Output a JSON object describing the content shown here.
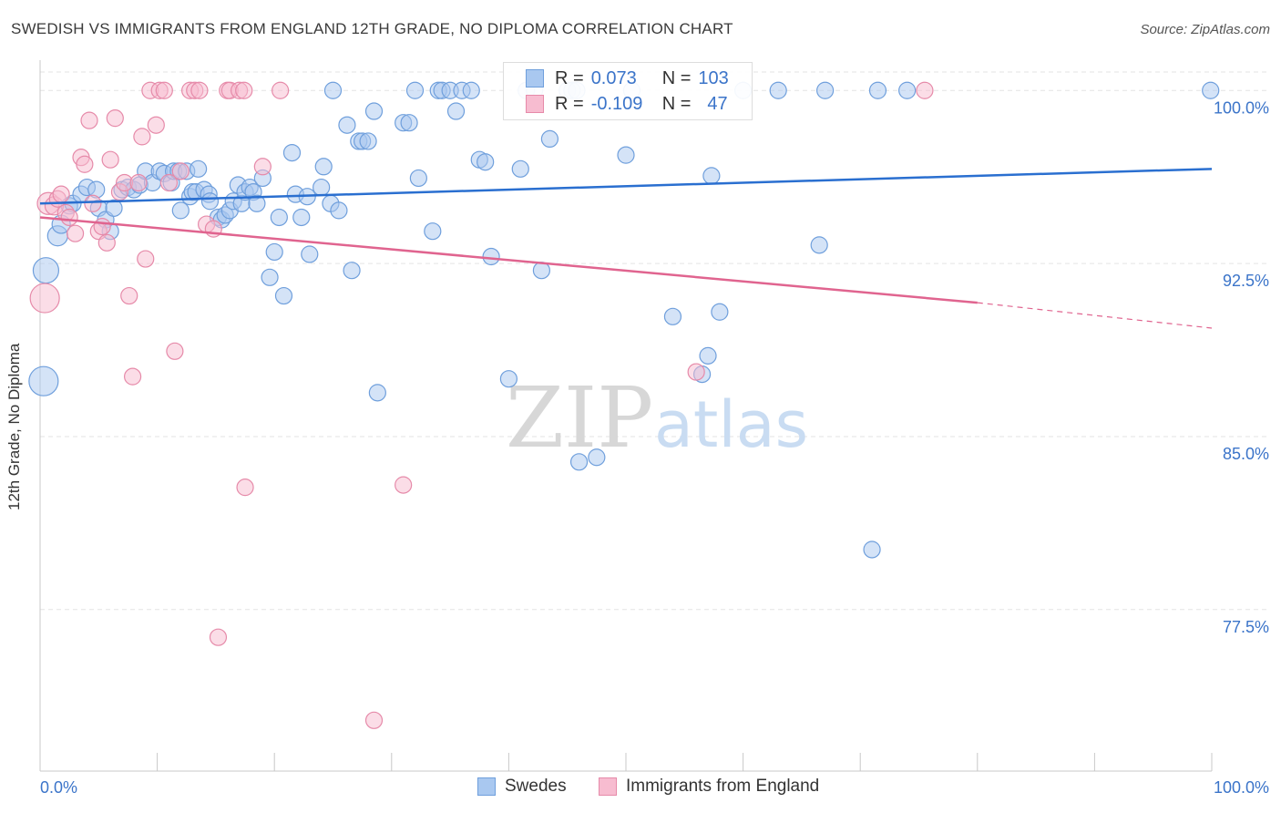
{
  "header": {
    "title": "SWEDISH VS IMMIGRANTS FROM ENGLAND 12TH GRADE, NO DIPLOMA CORRELATION CHART",
    "source": "Source: ZipAtlas.com"
  },
  "watermark": {
    "zip": "ZIP",
    "atlas": "atlas"
  },
  "legend": {
    "r_label": "R =",
    "n_label": "N =",
    "rows": [
      {
        "r": "0.073",
        "n": "103",
        "color": "#a9c8f0",
        "border": "#6f9fdc"
      },
      {
        "r": "-0.109",
        "n": "47",
        "color": "#f7bcd0",
        "border": "#e68aa9"
      }
    ]
  },
  "colors": {
    "swedes_fill": "#a9c8f0",
    "swedes_stroke": "#6f9fdc",
    "swedes_line": "#2a6fd0",
    "england_fill": "#f7bcd0",
    "england_stroke": "#e68aa9",
    "england_line": "#e0648f",
    "axis_text": "#3b74c9",
    "grid": "#e3e3e3"
  },
  "chart_data": {
    "type": "scatter",
    "title": "SWEDISH VS IMMIGRANTS FROM ENGLAND 12TH GRADE, NO DIPLOMA CORRELATION CHART",
    "xlabel": "",
    "ylabel": "12th Grade, No Diploma",
    "xlim": [
      0,
      100
    ],
    "ylim": [
      70.5,
      100.8
    ],
    "x_tick_labels": [
      "0.0%",
      "100.0%"
    ],
    "y_ticks": [
      77.5,
      85.0,
      92.5,
      100.0
    ],
    "y_tick_labels": [
      "77.5%",
      "85.0%",
      "92.5%",
      "100.0%"
    ],
    "grid": true,
    "legend_position": "bottom",
    "series": [
      {
        "name": "Swedes",
        "r": 0.073,
        "n": 103,
        "trend": {
          "x0": 0,
          "y0": 95.1,
          "x1": 100,
          "y1": 96.6
        },
        "points": [
          [
            0.3,
            87.4,
            16
          ],
          [
            0.5,
            92.2,
            14
          ],
          [
            1.5,
            93.7,
            11
          ],
          [
            1.8,
            94.2,
            10
          ],
          [
            2.5,
            95.0,
            9
          ],
          [
            2.8,
            95.1,
            9
          ],
          [
            3.5,
            95.5,
            9
          ],
          [
            4.0,
            95.8,
            9
          ],
          [
            4.8,
            95.7,
            9
          ],
          [
            5.0,
            94.9,
            9
          ],
          [
            5.6,
            94.4,
            9
          ],
          [
            6.0,
            93.9,
            9
          ],
          [
            6.3,
            94.9,
            9
          ],
          [
            7.0,
            95.7,
            9
          ],
          [
            7.5,
            95.8,
            9
          ],
          [
            8.0,
            95.7,
            9
          ],
          [
            8.5,
            95.9,
            9
          ],
          [
            9.0,
            96.5,
            9
          ],
          [
            9.6,
            96.0,
            9
          ],
          [
            10.2,
            96.5,
            9
          ],
          [
            10.6,
            96.4,
            9
          ],
          [
            11.2,
            96.0,
            9
          ],
          [
            11.4,
            96.5,
            9
          ],
          [
            11.8,
            96.5,
            9
          ],
          [
            12.0,
            94.8,
            9
          ],
          [
            12.5,
            96.5,
            9
          ],
          [
            12.8,
            95.4,
            9
          ],
          [
            13.0,
            95.6,
            9
          ],
          [
            13.3,
            95.6,
            9
          ],
          [
            13.5,
            96.6,
            9
          ],
          [
            14.0,
            95.7,
            9
          ],
          [
            14.4,
            95.5,
            9
          ],
          [
            14.5,
            95.2,
            9
          ],
          [
            15.2,
            94.5,
            9
          ],
          [
            15.5,
            94.4,
            9
          ],
          [
            15.8,
            94.6,
            9
          ],
          [
            16.2,
            94.8,
            9
          ],
          [
            16.5,
            95.2,
            9
          ],
          [
            16.9,
            95.9,
            9
          ],
          [
            17.2,
            95.1,
            9
          ],
          [
            17.5,
            95.6,
            9
          ],
          [
            17.9,
            95.8,
            9
          ],
          [
            18.2,
            95.6,
            9
          ],
          [
            18.5,
            95.1,
            9
          ],
          [
            19.0,
            96.2,
            9
          ],
          [
            19.6,
            91.9,
            9
          ],
          [
            20.0,
            93.0,
            9
          ],
          [
            20.4,
            94.5,
            9
          ],
          [
            20.8,
            91.1,
            9
          ],
          [
            21.5,
            97.3,
            9
          ],
          [
            21.8,
            95.5,
            9
          ],
          [
            22.3,
            94.5,
            9
          ],
          [
            22.8,
            95.4,
            9
          ],
          [
            23.0,
            92.9,
            9
          ],
          [
            24.0,
            95.8,
            9
          ],
          [
            24.2,
            96.7,
            9
          ],
          [
            24.8,
            95.1,
            9
          ],
          [
            25.0,
            100.0,
            9
          ],
          [
            25.5,
            94.8,
            9
          ],
          [
            26.2,
            98.5,
            9
          ],
          [
            26.6,
            92.2,
            9
          ],
          [
            27.2,
            97.8,
            9
          ],
          [
            27.5,
            97.8,
            9
          ],
          [
            28.0,
            97.8,
            9
          ],
          [
            28.5,
            99.1,
            9
          ],
          [
            28.8,
            86.9,
            9
          ],
          [
            31.0,
            98.6,
            9
          ],
          [
            31.5,
            98.6,
            9
          ],
          [
            32.0,
            100.0,
            9
          ],
          [
            32.3,
            96.2,
            9
          ],
          [
            33.5,
            93.9,
            9
          ],
          [
            34.0,
            100.0,
            9
          ],
          [
            34.3,
            100.0,
            9
          ],
          [
            35.0,
            100.0,
            9
          ],
          [
            35.5,
            99.1,
            9
          ],
          [
            36.0,
            100.0,
            9
          ],
          [
            36.8,
            100.0,
            9
          ],
          [
            37.5,
            97.0,
            9
          ],
          [
            38.0,
            96.9,
            9
          ],
          [
            38.5,
            92.8,
            9
          ],
          [
            40.0,
            87.5,
            9
          ],
          [
            41.0,
            96.6,
            9
          ],
          [
            41.5,
            100.0,
            9
          ],
          [
            42.2,
            100.0,
            9
          ],
          [
            42.8,
            92.2,
            9
          ],
          [
            43.5,
            97.9,
            9
          ],
          [
            45.0,
            100.0,
            9
          ],
          [
            45.4,
            100.0,
            9
          ],
          [
            45.8,
            100.0,
            9
          ],
          [
            46.0,
            83.9,
            9
          ],
          [
            47.5,
            84.1,
            9
          ],
          [
            50.0,
            97.2,
            9
          ],
          [
            50.5,
            100.0,
            9
          ],
          [
            54.0,
            90.2,
            9
          ],
          [
            56.5,
            87.7,
            9
          ],
          [
            57.0,
            88.5,
            9
          ],
          [
            57.3,
            96.3,
            9
          ],
          [
            58.0,
            90.4,
            9
          ],
          [
            60.0,
            100.0,
            9
          ],
          [
            63.0,
            100.0,
            9
          ],
          [
            66.5,
            93.3,
            9
          ],
          [
            67.0,
            100.0,
            9
          ],
          [
            71.0,
            80.1,
            9
          ],
          [
            71.5,
            100.0,
            9
          ],
          [
            74.0,
            100.0,
            9
          ],
          [
            99.9,
            100.0,
            9
          ]
        ]
      },
      {
        "name": "Immigrants from England",
        "r": -0.109,
        "n": 47,
        "trend": {
          "x0": 0,
          "y0": 94.5,
          "x1": 80,
          "y1": 90.8,
          "dash_to_x": 100,
          "dash_to_y": 89.7
        },
        "points": [
          [
            0.4,
            91.0,
            16
          ],
          [
            0.7,
            95.1,
            12
          ],
          [
            1.2,
            95.0,
            10
          ],
          [
            1.5,
            95.3,
            9
          ],
          [
            1.8,
            95.5,
            9
          ],
          [
            2.2,
            94.7,
            9
          ],
          [
            2.5,
            94.5,
            9
          ],
          [
            3.0,
            93.8,
            9
          ],
          [
            3.5,
            97.1,
            9
          ],
          [
            3.8,
            96.8,
            9
          ],
          [
            4.2,
            98.7,
            9
          ],
          [
            4.5,
            95.1,
            9
          ],
          [
            5.0,
            93.9,
            9
          ],
          [
            5.3,
            94.1,
            9
          ],
          [
            5.7,
            93.4,
            9
          ],
          [
            6.0,
            97.0,
            9
          ],
          [
            6.4,
            98.8,
            9
          ],
          [
            6.8,
            95.6,
            9
          ],
          [
            7.2,
            96.0,
            9
          ],
          [
            7.6,
            91.1,
            9
          ],
          [
            7.9,
            87.6,
            9
          ],
          [
            8.4,
            96.0,
            9
          ],
          [
            8.7,
            98.0,
            9
          ],
          [
            9.0,
            92.7,
            9
          ],
          [
            9.4,
            100.0,
            9
          ],
          [
            9.9,
            98.5,
            9
          ],
          [
            10.2,
            100.0,
            9
          ],
          [
            10.6,
            100.0,
            9
          ],
          [
            11.0,
            96.0,
            9
          ],
          [
            11.5,
            88.7,
            9
          ],
          [
            12.0,
            96.5,
            9
          ],
          [
            12.8,
            100.0,
            9
          ],
          [
            13.2,
            100.0,
            9
          ],
          [
            13.6,
            100.0,
            9
          ],
          [
            14.2,
            94.2,
            9
          ],
          [
            14.8,
            94.0,
            9
          ],
          [
            15.2,
            76.3,
            9
          ],
          [
            16.0,
            100.0,
            9
          ],
          [
            16.2,
            100.0,
            9
          ],
          [
            17.0,
            100.0,
            9
          ],
          [
            17.4,
            100.0,
            9
          ],
          [
            17.5,
            82.8,
            9
          ],
          [
            19.0,
            96.7,
            9
          ],
          [
            20.5,
            100.0,
            9
          ],
          [
            28.5,
            72.7,
            9
          ],
          [
            31.0,
            82.9,
            9
          ],
          [
            56.0,
            87.8,
            9
          ],
          [
            75.5,
            100.0,
            9
          ]
        ]
      }
    ]
  },
  "bottom_legend": [
    {
      "label": "Swedes"
    },
    {
      "label": "Immigrants from England"
    }
  ]
}
